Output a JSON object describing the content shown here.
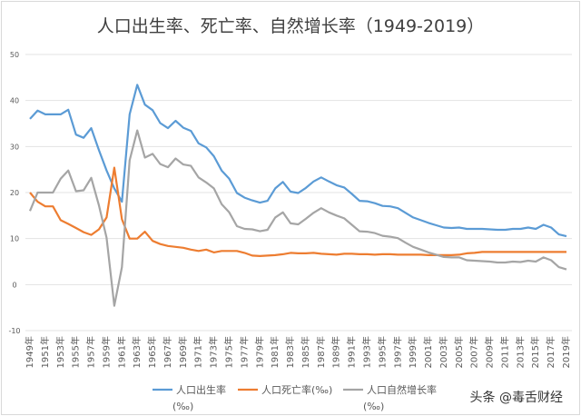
{
  "chart_data": {
    "type": "line",
    "title": "人口出生率、死亡率、自然增长率（1949-2019）",
    "xlabel": "",
    "ylabel": "",
    "ylim": [
      -10,
      50
    ],
    "yticks": [
      50,
      40,
      30,
      20,
      10,
      0,
      -10
    ],
    "grid": true,
    "legend_position": "bottom",
    "x_start": 1949,
    "x_end": 2019,
    "x_tick_step": 2,
    "x_tick_suffix": "年",
    "series": [
      {
        "name": "人口出生率(‰)",
        "legend_line1": "人口出生率",
        "legend_line2": "(‰)",
        "color": "#5b9bd5",
        "values": [
          36,
          37.8,
          37,
          37,
          37,
          38,
          32.6,
          31.9,
          34,
          29.2,
          24.8,
          20.9,
          18,
          37,
          43.4,
          39.1,
          37.9,
          35.1,
          34,
          35.6,
          34.1,
          33.4,
          30.7,
          29.8,
          27.9,
          24.8,
          23,
          19.9,
          18.9,
          18.3,
          17.8,
          18.2,
          20.9,
          22.3,
          20.2,
          19.9,
          21,
          22.4,
          23.3,
          22.4,
          21.6,
          21.1,
          19.7,
          18.2,
          18.1,
          17.7,
          17.1,
          17,
          16.6,
          15.6,
          14.6,
          14,
          13.4,
          12.9,
          12.4,
          12.3,
          12.4,
          12.1,
          12.1,
          12.1,
          12,
          11.9,
          11.9,
          12.1,
          12.1,
          12.4,
          12.1,
          13,
          12.4,
          10.9,
          10.5
        ]
      },
      {
        "name": "人口死亡率(‰)",
        "legend_line1": "人口死亡率(‰)",
        "legend_line2": "",
        "color": "#ed7d31",
        "values": [
          20,
          18,
          17,
          17,
          14,
          13.2,
          12.3,
          11.4,
          10.8,
          12,
          14.6,
          25.4,
          14.2,
          10,
          10,
          11.5,
          9.5,
          8.8,
          8.4,
          8.2,
          8,
          7.6,
          7.3,
          7.6,
          7,
          7.3,
          7.3,
          7.3,
          6.9,
          6.3,
          6.2,
          6.3,
          6.4,
          6.6,
          6.9,
          6.8,
          6.8,
          6.9,
          6.7,
          6.6,
          6.5,
          6.7,
          6.7,
          6.6,
          6.6,
          6.5,
          6.6,
          6.6,
          6.5,
          6.5,
          6.5,
          6.5,
          6.4,
          6.4,
          6.4,
          6.4,
          6.5,
          6.8,
          6.9,
          7.1,
          7.1,
          7.1,
          7.1,
          7.1,
          7.1,
          7.1,
          7.1,
          7.1,
          7.1,
          7.1,
          7.1
        ]
      },
      {
        "name": "人口自然增长率(‰)",
        "legend_line1": "人口自然增长率",
        "legend_line2": "(‰)",
        "color": "#a5a5a5",
        "values": [
          16,
          20,
          20,
          20,
          23,
          24.8,
          20.3,
          20.5,
          23.2,
          17.2,
          10.2,
          -4.6,
          3.8,
          27,
          33.5,
          27.6,
          28.4,
          26.2,
          25.5,
          27.4,
          26.1,
          25.8,
          23.3,
          22.2,
          20.9,
          17.5,
          15.7,
          12.7,
          12.1,
          12,
          11.6,
          11.9,
          14.6,
          15.7,
          13.3,
          13.1,
          14.3,
          15.6,
          16.6,
          15.7,
          15,
          14.4,
          13,
          11.6,
          11.5,
          11.2,
          10.6,
          10.4,
          10.1,
          9.1,
          8.2,
          7.6,
          7,
          6.5,
          6,
          5.9,
          5.9,
          5.3,
          5.2,
          5.1,
          5,
          4.8,
          4.8,
          5,
          4.9,
          5.2,
          5,
          5.9,
          5.3,
          3.8,
          3.3
        ]
      }
    ]
  },
  "watermark": "头条 @毒舌财经"
}
